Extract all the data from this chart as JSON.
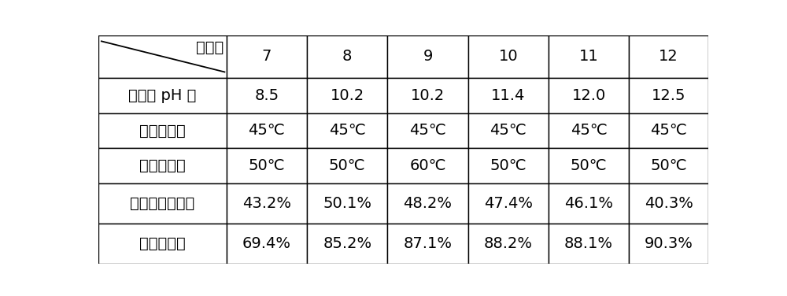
{
  "col_headers": [
    "7",
    "8",
    "9",
    "10",
    "11",
    "12"
  ],
  "row_headers": [
    "实验例",
    "流动相 pH 值",
    "上样液温度",
    "洗脱液温度",
    "此步骤样品纯度",
    "此步骤收率"
  ],
  "data": [
    [
      "8.5",
      "10.2",
      "10.2",
      "11.4",
      "12.0",
      "12.5"
    ],
    [
      "45℃",
      "45℃",
      "45℃",
      "45℃",
      "45℃",
      "45℃"
    ],
    [
      "50℃",
      "50℃",
      "60℃",
      "50℃",
      "50℃",
      "50℃"
    ],
    [
      "43.2%",
      "50.1%",
      "48.2%",
      "47.4%",
      "46.1%",
      "40.3%"
    ],
    [
      "69.4%",
      "85.2%",
      "87.1%",
      "88.2%",
      "88.1%",
      "90.3%"
    ]
  ],
  "bg_color": "#ffffff",
  "text_color": "#000000",
  "border_color": "#000000",
  "font_size": 14,
  "fig_width": 10.0,
  "fig_height": 3.76
}
